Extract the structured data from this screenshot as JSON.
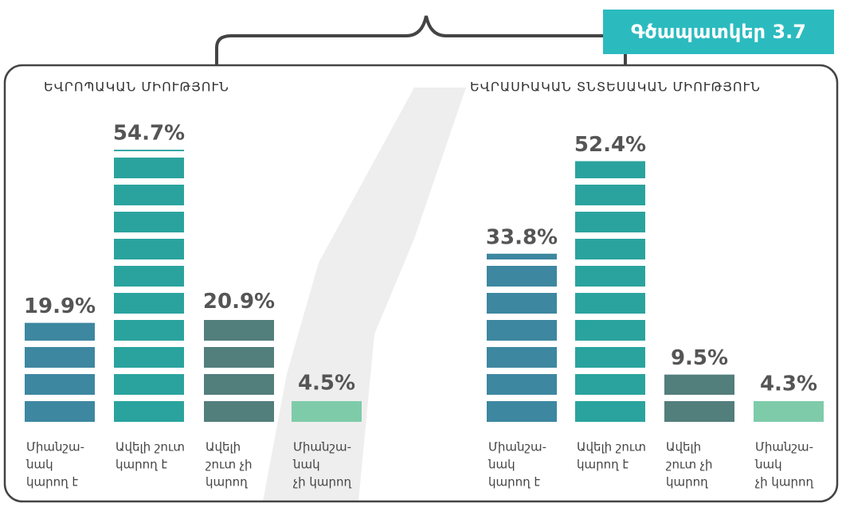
{
  "badge": "Գծապատկեր 3.7",
  "chart_data": [
    {
      "type": "bar",
      "title": "ԵՎՐՈՊԱԿԱՆ ՄԻՈՒԹՅՈՒՆ",
      "categories": [
        [
          "Միանշա-",
          "նակ",
          "կարող է"
        ],
        [
          "Ավելի շուտ",
          "կարող է"
        ],
        [
          "Ավելի",
          "շուտ չի",
          "կարող"
        ],
        [
          "Միանշա-",
          "նակ",
          "չի կարող"
        ]
      ],
      "values": [
        19.9,
        54.7,
        20.9,
        4.5
      ],
      "value_labels": [
        "19.9%",
        "54.7%",
        "20.9%",
        "4.5%"
      ],
      "colors": [
        "#3d87a0",
        "#2aa39e",
        "#527e7c",
        "#7ecbaa"
      ]
    },
    {
      "type": "bar",
      "title": "ԵՎՐԱՍԻԱԿԱՆ ՏՆՏԵՍԱԿԱՆ ՄԻՈՒԹՅՈՒՆ",
      "categories": [
        [
          "Միանշա-",
          "նակ",
          "կարող է"
        ],
        [
          "Ավելի շուտ",
          "կարող է"
        ],
        [
          "Ավելի",
          "շուտ չի",
          "կարող"
        ],
        [
          "Միանշա-",
          "նակ",
          "չի կարող"
        ]
      ],
      "values": [
        33.8,
        52.4,
        9.5,
        4.3
      ],
      "value_labels": [
        "33.8%",
        "52.4%",
        "9.5%",
        "4.3%"
      ],
      "colors": [
        "#3d87a0",
        "#2aa39e",
        "#527e7c",
        "#7ecbaa"
      ]
    }
  ]
}
